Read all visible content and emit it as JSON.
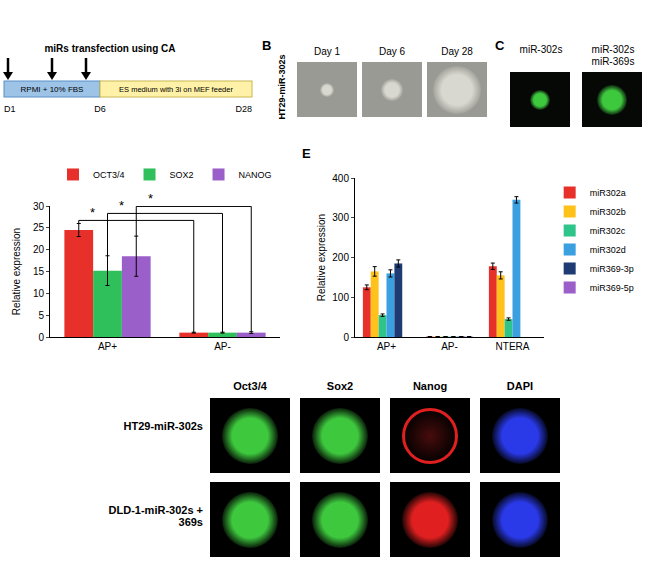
{
  "figure": {
    "letters": [
      "B",
      "C",
      "E"
    ],
    "timeline": {
      "header": "miRs transfection using CA",
      "phases": [
        "RPMI + 10% FBS",
        "ES medium with 3i on MEF feeder"
      ],
      "days": [
        "D1",
        "D6",
        "D28"
      ]
    },
    "panel_b": {
      "row_label": "HT29-miR-302s",
      "columns": [
        "Day 1",
        "Day 6",
        "Day 28"
      ]
    },
    "panel_c": {
      "columns": [
        "miR-302s",
        "miR-302s miR-369s"
      ]
    },
    "panel_f": {
      "columns": [
        "Oct3/4",
        "Sox2",
        "Nanog",
        "DAPI"
      ],
      "rows": [
        "HT29-miR-302s",
        "DLD-1-miR-302s + 369s"
      ]
    }
  },
  "chart_data": [
    {
      "type": "bar",
      "ylabel": "Relative expression",
      "categories": [
        "AP+",
        "AP-"
      ],
      "series": [
        {
          "name": "OCT3/4",
          "color": "#e8302a",
          "values": [
            24.5,
            1
          ],
          "errors": [
            1.5,
            0.1
          ]
        },
        {
          "name": "SOX2",
          "color": "#2fbf5b",
          "values": [
            15.2,
            1
          ],
          "errors": [
            3.4,
            0.1
          ]
        },
        {
          "name": "NANOG",
          "color": "#9a5fc9",
          "values": [
            18.5,
            1
          ],
          "errors": [
            4.6,
            0.2
          ]
        }
      ],
      "ylim": [
        0,
        30
      ],
      "yticks": [
        0,
        5,
        10,
        15,
        20,
        25,
        30
      ],
      "grid": false,
      "legend": "top",
      "significance": [
        {
          "series": "OCT3/4",
          "from": "AP+",
          "to": "AP-",
          "y": 26.7,
          "label": "*"
        },
        {
          "series": "SOX2",
          "from": "AP+",
          "to": "AP-",
          "y": 28.3,
          "label": "*"
        },
        {
          "series": "NANOG",
          "from": "AP+",
          "to": "AP-",
          "y": 29.9,
          "label": "*"
        }
      ]
    },
    {
      "type": "bar",
      "ylabel": "Relative expression",
      "categories": [
        "AP+",
        "AP-",
        "NTERA"
      ],
      "series": [
        {
          "name": "miR302a",
          "color": "#e8302a",
          "values": [
            125,
            1,
            178
          ],
          "errors": [
            6,
            0.2,
            8
          ]
        },
        {
          "name": "miR302b",
          "color": "#ffc21a",
          "values": [
            165,
            1,
            155
          ],
          "errors": [
            12,
            0.2,
            9
          ]
        },
        {
          "name": "miR302c",
          "color": "#2fc48a",
          "values": [
            55,
            1,
            45
          ],
          "errors": [
            3,
            0.1,
            3
          ]
        },
        {
          "name": "miR302d",
          "color": "#3aa0e0",
          "values": [
            160,
            1,
            345
          ],
          "errors": [
            9,
            0.2,
            8
          ]
        },
        {
          "name": "miR369-3p",
          "color": "#1f3b73",
          "values": [
            185,
            1,
            null
          ],
          "errors": [
            9,
            0.2,
            null
          ]
        },
        {
          "name": "miR369-5p",
          "color": "#9a5fc9",
          "values": [
            null,
            1,
            null
          ],
          "errors": [
            null,
            0.2,
            null
          ]
        }
      ],
      "ylim": [
        0,
        400
      ],
      "yticks": [
        0,
        100,
        200,
        300,
        400
      ],
      "grid": false,
      "legend": "right"
    }
  ]
}
